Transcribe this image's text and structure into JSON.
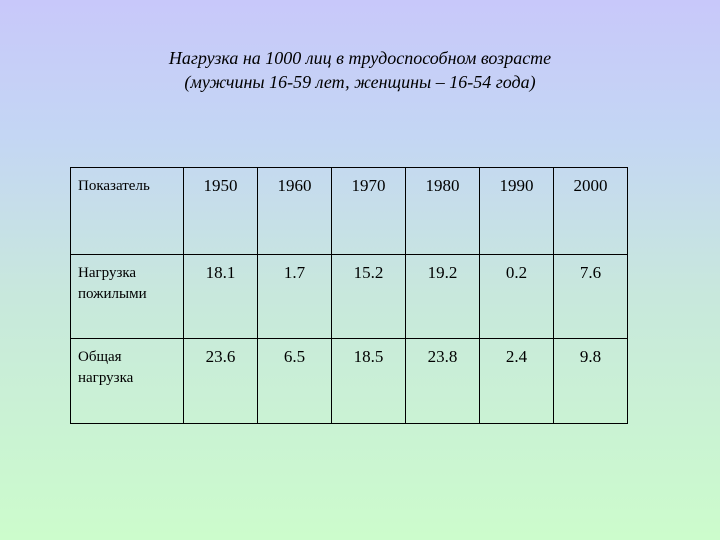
{
  "title": {
    "line1": "Нагрузка на 1000 лиц в трудоспособном возрасте",
    "line2": "(мужчины 16-59 лет, женщины – 16-54 года)"
  },
  "table": {
    "header_label": "Показатель",
    "years": [
      "1950",
      "1960",
      "1970",
      "1980",
      "1990",
      "2000"
    ],
    "rows": [
      {
        "label": "Нагрузка пожилыми",
        "values": [
          "18.1",
          "1.7",
          "15.2",
          "19.2",
          "0.2",
          "7.6"
        ]
      },
      {
        "label": "Общая нагрузка",
        "values": [
          "23.6",
          "6.5",
          "18.5",
          "23.8",
          "2.4",
          "9.8"
        ]
      }
    ]
  }
}
